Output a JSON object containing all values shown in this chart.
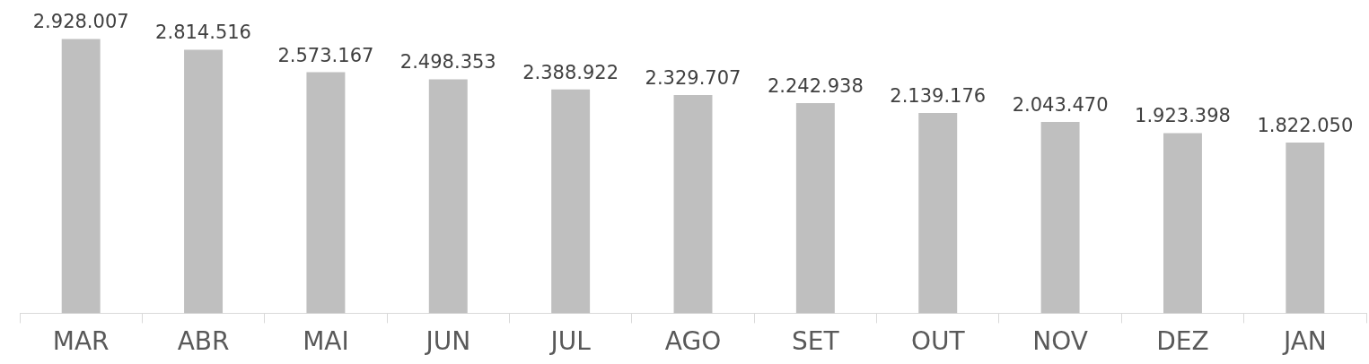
{
  "chart_data": {
    "type": "bar",
    "categories": [
      "MAR",
      "ABR",
      "MAI",
      "JUN",
      "JUL",
      "AGO",
      "SET",
      "OUT",
      "NOV",
      "DEZ",
      "JAN"
    ],
    "values": [
      2928007,
      2814516,
      2573167,
      2498353,
      2388922,
      2329707,
      2242938,
      2139176,
      2043470,
      1923398,
      1822050
    ],
    "value_labels": [
      "2.928.007",
      "2.814.516",
      "2.573.167",
      "2.498.353",
      "2.388.922",
      "2.329.707",
      "2.242.938",
      "2.139.176",
      "2.043.470",
      "1.923.398",
      "1.822.050"
    ],
    "color": "#bfbfbf",
    "grid": false,
    "legend": false,
    "tick_labels": "x"
  }
}
